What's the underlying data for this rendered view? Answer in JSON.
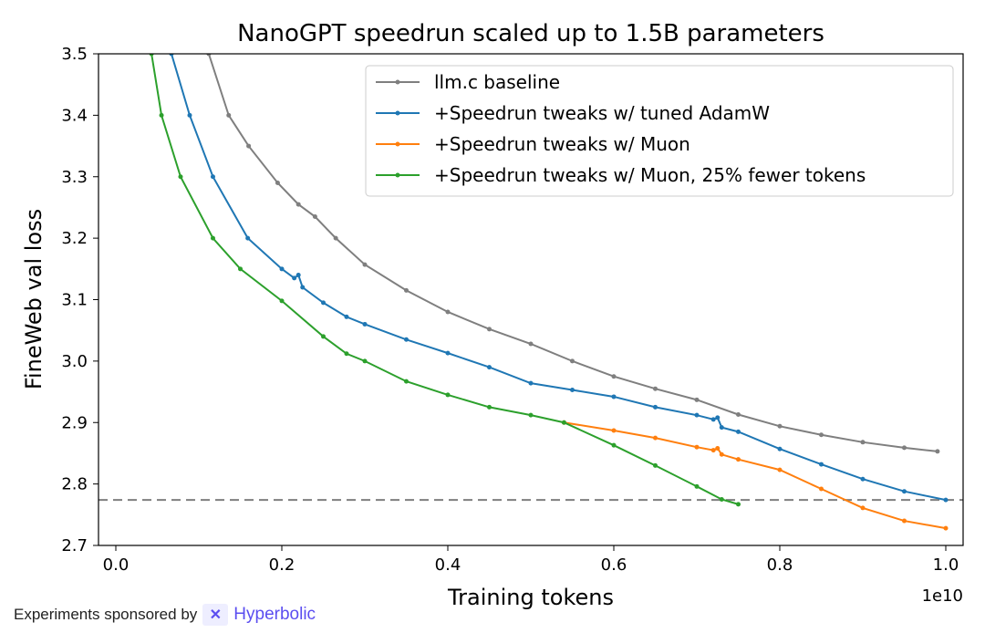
{
  "chart_data": {
    "type": "line",
    "title": "NanoGPT speedrun scaled up to 1.5B parameters",
    "xlabel": "Training tokens",
    "ylabel": "FineWeb val loss",
    "x_offset_label": "1e10",
    "xlim": [
      -0.02,
      1.02
    ],
    "ylim": [
      2.7,
      3.5
    ],
    "xticks": [
      "0.0",
      "0.2",
      "0.4",
      "0.6",
      "0.8",
      "1.0"
    ],
    "yticks": [
      "2.7",
      "2.8",
      "2.9",
      "3.0",
      "3.1",
      "3.2",
      "3.3",
      "3.4",
      "3.5"
    ],
    "grid": false,
    "legend_position": "top-right",
    "reference_line": {
      "y": 2.774,
      "style": "dashed",
      "color": "#7f7f7f"
    },
    "series": [
      {
        "name": "llm.c baseline",
        "color": "#7f7f7f",
        "x": [
          0.1,
          0.112,
          0.136,
          0.16,
          0.195,
          0.22,
          0.24,
          0.265,
          0.3,
          0.35,
          0.4,
          0.45,
          0.5,
          0.55,
          0.6,
          0.65,
          0.7,
          0.75,
          0.8,
          0.85,
          0.9,
          0.95,
          0.99
        ],
        "y": [
          3.56,
          3.5,
          3.4,
          3.35,
          3.29,
          3.255,
          3.235,
          3.2,
          3.157,
          3.115,
          3.08,
          3.052,
          3.028,
          3.0,
          2.975,
          2.955,
          2.937,
          2.913,
          2.894,
          2.88,
          2.868,
          2.859,
          2.853
        ]
      },
      {
        "name": "+Speedrun tweaks w/ tuned AdamW",
        "color": "#1f77b4",
        "x": [
          0.06,
          0.067,
          0.089,
          0.117,
          0.159,
          0.2,
          0.215,
          0.22,
          0.225,
          0.25,
          0.278,
          0.3,
          0.35,
          0.4,
          0.45,
          0.5,
          0.55,
          0.6,
          0.65,
          0.7,
          0.72,
          0.725,
          0.73,
          0.75,
          0.8,
          0.85,
          0.9,
          0.95,
          1.0
        ],
        "y": [
          3.56,
          3.5,
          3.4,
          3.3,
          3.2,
          3.15,
          3.135,
          3.14,
          3.12,
          3.095,
          3.072,
          3.06,
          3.035,
          3.013,
          2.99,
          2.964,
          2.953,
          2.942,
          2.925,
          2.912,
          2.905,
          2.908,
          2.892,
          2.885,
          2.857,
          2.832,
          2.808,
          2.788,
          2.774
        ]
      },
      {
        "name": "+Speedrun tweaks w/ Muon",
        "color": "#ff7f0e",
        "x": [
          0.54,
          0.6,
          0.65,
          0.7,
          0.72,
          0.725,
          0.73,
          0.75,
          0.8,
          0.85,
          0.9,
          0.95,
          1.0
        ],
        "y": [
          2.9,
          2.887,
          2.875,
          2.86,
          2.855,
          2.858,
          2.848,
          2.84,
          2.823,
          2.792,
          2.761,
          2.74,
          2.728
        ]
      },
      {
        "name": "+Speedrun tweaks w/ Muon, 25% fewer tokens",
        "color": "#2ca02c",
        "x": [
          0.038,
          0.043,
          0.055,
          0.078,
          0.117,
          0.15,
          0.2,
          0.25,
          0.278,
          0.3,
          0.35,
          0.4,
          0.45,
          0.5,
          0.54,
          0.6,
          0.65,
          0.7,
          0.73,
          0.75
        ],
        "y": [
          3.56,
          3.5,
          3.4,
          3.3,
          3.2,
          3.15,
          3.098,
          3.04,
          3.012,
          3.0,
          2.967,
          2.945,
          2.925,
          2.912,
          2.9,
          2.863,
          2.83,
          2.796,
          2.775,
          2.767
        ]
      }
    ]
  },
  "footer": {
    "sponsor_text": "Experiments sponsored by",
    "sponsor_name": "Hyperbolic"
  }
}
